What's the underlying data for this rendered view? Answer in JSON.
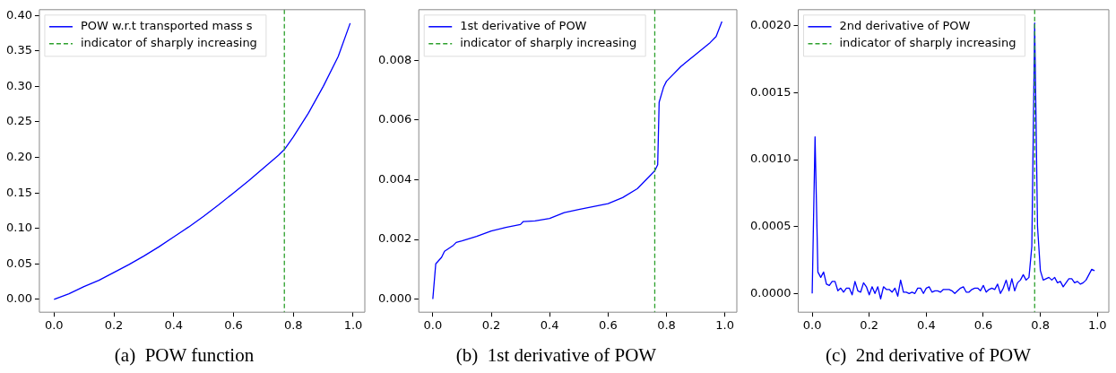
{
  "chart_data": [
    {
      "type": "line",
      "title": "(a)  POW function",
      "legend": "top left",
      "grid": false,
      "x": [
        0,
        0.05,
        0.1,
        0.15,
        0.2,
        0.25,
        0.3,
        0.35,
        0.4,
        0.45,
        0.5,
        0.55,
        0.6,
        0.65,
        0.7,
        0.75,
        0.77,
        0.8,
        0.85,
        0.9,
        0.95,
        0.99
      ],
      "series": [
        {
          "name": "POW w.r.t transported mass s",
          "color": "#0000ff",
          "values": [
            0,
            0.008,
            0.018,
            0.027,
            0.038,
            0.049,
            0.061,
            0.074,
            0.088,
            0.102,
            0.117,
            0.133,
            0.15,
            0.167,
            0.185,
            0.203,
            0.211,
            0.229,
            0.262,
            0.3,
            0.342,
            0.389
          ]
        }
      ],
      "ref_lines": [
        {
          "axis": "x",
          "value": 0.77,
          "label": "indicator of sharply increasing",
          "color": "#2ca02c",
          "line_style": "dashed"
        }
      ],
      "xlim": [
        -0.049,
        1.039
      ],
      "ylim": [
        -0.018,
        0.408
      ],
      "xticks": [
        {
          "value": 0,
          "label": "0.0"
        },
        {
          "value": 0.2,
          "label": "0.2"
        },
        {
          "value": 0.4,
          "label": "0.4"
        },
        {
          "value": 0.6,
          "label": "0.6"
        },
        {
          "value": 0.8,
          "label": "0.8"
        },
        {
          "value": 1,
          "label": "1.0"
        }
      ],
      "yticks": [
        {
          "value": 0,
          "label": "0.00"
        },
        {
          "value": 0.05,
          "label": "0.05"
        },
        {
          "value": 0.1,
          "label": "0.10"
        },
        {
          "value": 0.15,
          "label": "0.15"
        },
        {
          "value": 0.2,
          "label": "0.20"
        },
        {
          "value": 0.25,
          "label": "0.25"
        },
        {
          "value": 0.3,
          "label": "0.30"
        },
        {
          "value": 0.35,
          "label": "0.35"
        },
        {
          "value": 0.4,
          "label": "0.40"
        }
      ]
    },
    {
      "type": "line",
      "title": "(b)  1st derivative of POW",
      "legend": "top left",
      "grid": false,
      "x": [
        0,
        0.01,
        0.03,
        0.04,
        0.07,
        0.08,
        0.1,
        0.15,
        0.2,
        0.25,
        0.3,
        0.31,
        0.35,
        0.4,
        0.45,
        0.5,
        0.55,
        0.6,
        0.65,
        0.7,
        0.73,
        0.76,
        0.77,
        0.775,
        0.79,
        0.8,
        0.85,
        0.9,
        0.95,
        0.97,
        0.99
      ],
      "series": [
        {
          "name": "1st derivative of POW",
          "color": "#0000ff",
          "values": [
            0,
            0.00118,
            0.0014,
            0.0016,
            0.0018,
            0.0019,
            0.00195,
            0.0021,
            0.00228,
            0.0024,
            0.0025,
            0.0026,
            0.00262,
            0.0027,
            0.0029,
            0.003,
            0.0031,
            0.0032,
            0.0034,
            0.0037,
            0.004,
            0.0043,
            0.0045,
            0.0066,
            0.0071,
            0.0073,
            0.0078,
            0.0082,
            0.0086,
            0.0088,
            0.0093
          ]
        }
      ],
      "ref_lines": [
        {
          "axis": "x",
          "value": 0.76,
          "label": "indicator of sharply increasing",
          "color": "#2ca02c",
          "line_style": "dashed"
        }
      ],
      "xlim": [
        -0.048,
        1.041
      ],
      "ylim": [
        -0.00044,
        0.0097
      ],
      "xticks": [
        {
          "value": 0,
          "label": "0.0"
        },
        {
          "value": 0.2,
          "label": "0.2"
        },
        {
          "value": 0.4,
          "label": "0.4"
        },
        {
          "value": 0.6,
          "label": "0.6"
        },
        {
          "value": 0.8,
          "label": "0.8"
        },
        {
          "value": 1,
          "label": "1.0"
        }
      ],
      "yticks": [
        {
          "value": 0,
          "label": "0.000"
        },
        {
          "value": 0.002,
          "label": "0.002"
        },
        {
          "value": 0.004,
          "label": "0.004"
        },
        {
          "value": 0.006,
          "label": "0.006"
        },
        {
          "value": 0.008,
          "label": "0.008"
        }
      ]
    },
    {
      "type": "line",
      "title": "(c)  2nd derivative of POW",
      "legend": "top left",
      "grid": false,
      "x": [
        0,
        0.01,
        0.02,
        0.03,
        0.04,
        0.05,
        0.06,
        0.07,
        0.08,
        0.09,
        0.1,
        0.11,
        0.12,
        0.13,
        0.14,
        0.15,
        0.16,
        0.17,
        0.18,
        0.19,
        0.2,
        0.21,
        0.22,
        0.23,
        0.24,
        0.25,
        0.26,
        0.27,
        0.28,
        0.29,
        0.3,
        0.31,
        0.32,
        0.33,
        0.34,
        0.35,
        0.36,
        0.37,
        0.38,
        0.39,
        0.4,
        0.41,
        0.42,
        0.43,
        0.44,
        0.45,
        0.46,
        0.47,
        0.48,
        0.49,
        0.5,
        0.51,
        0.52,
        0.53,
        0.54,
        0.55,
        0.56,
        0.57,
        0.58,
        0.59,
        0.6,
        0.61,
        0.62,
        0.63,
        0.64,
        0.65,
        0.66,
        0.67,
        0.68,
        0.69,
        0.7,
        0.71,
        0.72,
        0.73,
        0.74,
        0.75,
        0.76,
        0.77,
        0.78,
        0.79,
        0.8,
        0.81,
        0.82,
        0.83,
        0.84,
        0.85,
        0.86,
        0.87,
        0.88,
        0.89,
        0.9,
        0.91,
        0.92,
        0.93,
        0.94,
        0.95,
        0.96,
        0.97,
        0.98,
        0.99
      ],
      "series": [
        {
          "name": "2nd derivative of POW",
          "color": "#0000ff",
          "values": [
            0,
            0.00117,
            0.00016,
            0.00012,
            0.00016,
            7e-05,
            6e-05,
            9e-05,
            9e-05,
            2e-05,
            4e-05,
            1e-05,
            4e-05,
            4e-05,
            -1e-05,
            9e-05,
            2e-05,
            1e-05,
            8e-05,
            5e-05,
            -1e-05,
            5e-05,
            0,
            5e-05,
            -4e-05,
            5e-05,
            3e-05,
            3e-05,
            1e-05,
            4e-05,
            -2e-05,
            0.0001,
            1e-05,
            1e-05,
            0,
            1e-05,
            0,
            4e-05,
            4e-05,
            0,
            4e-05,
            5e-05,
            1e-05,
            2e-05,
            2e-05,
            1e-05,
            3e-05,
            3e-05,
            3e-05,
            2e-05,
            0,
            2e-05,
            4e-05,
            5e-05,
            1e-05,
            1e-05,
            3e-05,
            4e-05,
            4e-05,
            2e-05,
            6e-05,
            1e-05,
            3e-05,
            4e-05,
            3e-05,
            7e-05,
            0,
            4e-05,
            0.0001,
            2e-05,
            0.00011,
            2e-05,
            8e-05,
            0.0001,
            0.00014,
            0.0001,
            0.00012,
            0.00035,
            0.00202,
            0.0005,
            0.00017,
            0.0001,
            0.00011,
            0.00012,
            0.0001,
            0.00012,
            8e-05,
            9e-05,
            5e-05,
            8e-05,
            0.00011,
            0.00011,
            8e-05,
            9e-05,
            7e-05,
            8e-05,
            0.0001,
            0.00014,
            0.00018,
            0.00017
          ]
        }
      ],
      "ref_lines": [
        {
          "axis": "x",
          "value": 0.78,
          "label": "indicator of sharply increasing",
          "color": "#2ca02c",
          "line_style": "dashed"
        }
      ],
      "xlim": [
        -0.049,
        1.04
      ],
      "ylim": [
        -0.00014,
        0.00212
      ],
      "xticks": [
        {
          "value": 0,
          "label": "0.0"
        },
        {
          "value": 0.2,
          "label": "0.2"
        },
        {
          "value": 0.4,
          "label": "0.4"
        },
        {
          "value": 0.6,
          "label": "0.6"
        },
        {
          "value": 0.8,
          "label": "0.8"
        },
        {
          "value": 1,
          "label": "1.0"
        }
      ],
      "yticks": [
        {
          "value": 0,
          "label": "0.0000"
        },
        {
          "value": 0.0005,
          "label": "0.0005"
        },
        {
          "value": 0.001,
          "label": "0.0010"
        },
        {
          "value": 0.0015,
          "label": "0.0015"
        },
        {
          "value": 0.002,
          "label": "0.0020"
        }
      ]
    }
  ]
}
